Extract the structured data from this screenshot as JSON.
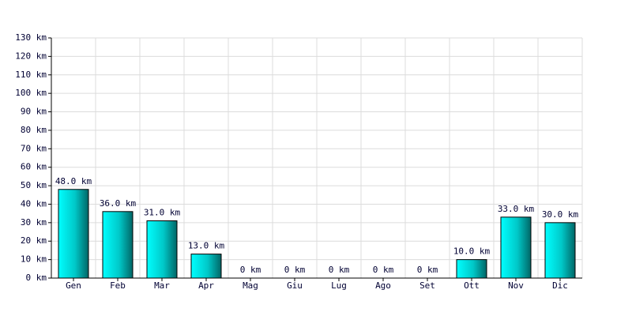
{
  "chart_data": {
    "type": "bar",
    "categories": [
      "Gen",
      "Feb",
      "Mar",
      "Apr",
      "Mag",
      "Giu",
      "Lug",
      "Ago",
      "Set",
      "Ott",
      "Nov",
      "Dic"
    ],
    "values": [
      48,
      36,
      31,
      13,
      0,
      0,
      0,
      0,
      0,
      10,
      33,
      30
    ],
    "value_labels": [
      "48.0 km",
      "36.0 km",
      "31.0 km",
      "13.0 km",
      "0 km",
      "0 km",
      "0 km",
      "0 km",
      "0 km",
      "10.0 km",
      "33.0 km",
      "30.0 km"
    ],
    "color": "#00c8c8",
    "ylim": [
      0,
      130
    ],
    "yticks": [
      {
        "value": 0,
        "label": "0 km"
      },
      {
        "value": 10,
        "label": "10 km"
      },
      {
        "value": 20,
        "label": "20 km"
      },
      {
        "value": 30,
        "label": "30 km"
      },
      {
        "value": 40,
        "label": "40 km"
      },
      {
        "value": 50,
        "label": "50 km"
      },
      {
        "value": 60,
        "label": "60 km"
      },
      {
        "value": 70,
        "label": "70 km"
      },
      {
        "value": 80,
        "label": "80 km"
      },
      {
        "value": 90,
        "label": "90 km"
      },
      {
        "value": 100,
        "label": "100 km"
      },
      {
        "value": 110,
        "label": "110 km"
      },
      {
        "value": 120,
        "label": "120 km"
      },
      {
        "value": 130,
        "label": "130 km"
      }
    ],
    "grid": true
  }
}
